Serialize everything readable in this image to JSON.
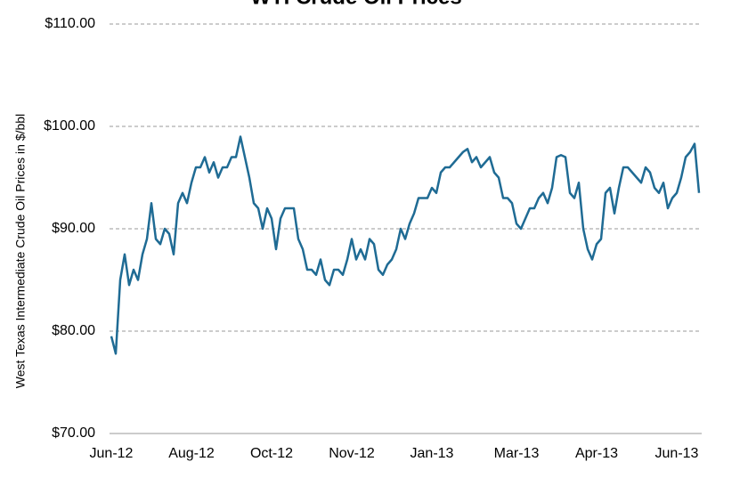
{
  "chart_data": {
    "type": "line",
    "title": "WTI Crude Oil Prices",
    "y_label": "West Texas Intermediate Crude Oil Prices in $/bbl",
    "categories": [
      "Jun-12",
      null,
      null,
      null,
      null,
      null,
      null,
      null,
      null,
      null,
      null,
      null,
      null,
      null,
      null,
      null,
      null,
      null,
      "Aug-12",
      null,
      null,
      null,
      null,
      null,
      null,
      null,
      null,
      null,
      null,
      null,
      null,
      null,
      null,
      null,
      null,
      null,
      "Oct-12",
      null,
      null,
      null,
      null,
      null,
      null,
      null,
      null,
      null,
      null,
      null,
      null,
      null,
      null,
      null,
      null,
      null,
      "Nov-12",
      null,
      null,
      null,
      null,
      null,
      null,
      null,
      null,
      null,
      null,
      null,
      null,
      null,
      null,
      null,
      null,
      null,
      "Jan-13",
      null,
      null,
      null,
      null,
      null,
      null,
      null,
      null,
      null,
      null,
      null,
      null,
      null,
      null,
      null,
      null,
      null,
      null,
      "Mar-13",
      null,
      null,
      null,
      null,
      null,
      null,
      null,
      null,
      null,
      null,
      null,
      null,
      null,
      null,
      null,
      null,
      null,
      "Apr-13",
      null,
      null,
      null,
      null,
      null,
      null,
      null,
      null,
      null,
      null,
      null,
      null,
      null,
      null,
      null,
      null,
      null,
      "Jun-13",
      null,
      null,
      null,
      null,
      null
    ],
    "series": [
      {
        "color": "#1f6b94",
        "values": [
          79.5,
          77.8,
          85,
          87.5,
          84.5,
          86,
          85,
          87.5,
          89,
          92.5,
          89,
          88.5,
          90,
          89.5,
          87.5,
          92.5,
          93.5,
          92.5,
          94.5,
          96,
          96,
          97,
          95.5,
          96.5,
          95,
          96,
          96,
          97,
          97,
          99,
          97,
          95,
          92.5,
          92,
          90,
          92,
          91,
          88,
          91,
          92,
          92,
          92,
          89,
          88,
          86,
          86,
          85.5,
          87,
          85,
          84.5,
          86,
          86,
          85.5,
          87,
          89,
          87,
          88,
          87,
          89,
          88.5,
          86,
          85.5,
          86.5,
          87,
          88,
          90,
          89,
          90.5,
          91.5,
          93,
          93,
          93,
          94,
          93.5,
          95.5,
          96,
          96,
          96.5,
          97,
          97.5,
          97.8,
          96.5,
          97,
          96,
          96.5,
          97,
          95.5,
          95,
          93,
          93,
          92.5,
          90.5,
          90,
          91,
          92,
          92,
          93,
          93.5,
          92.5,
          94,
          97,
          97.2,
          97,
          93.5,
          93,
          94.5,
          90,
          88,
          87,
          88.5,
          89,
          93.5,
          94,
          91.5,
          94,
          96,
          96,
          95.5,
          95,
          94.5,
          96,
          95.5,
          94,
          93.5,
          94.5,
          92,
          93,
          93.5,
          95,
          97,
          97.5,
          98.3,
          93.5
        ]
      }
    ],
    "ylim": [
      70,
      110
    ],
    "yticks": [
      {
        "value": 70,
        "label": "$70.00"
      },
      {
        "value": 80,
        "label": "$80.00"
      },
      {
        "value": 90,
        "label": "$90.00"
      },
      {
        "value": 100,
        "label": "$100.00"
      },
      {
        "value": 110,
        "label": "$110.00"
      }
    ],
    "grid": true
  }
}
